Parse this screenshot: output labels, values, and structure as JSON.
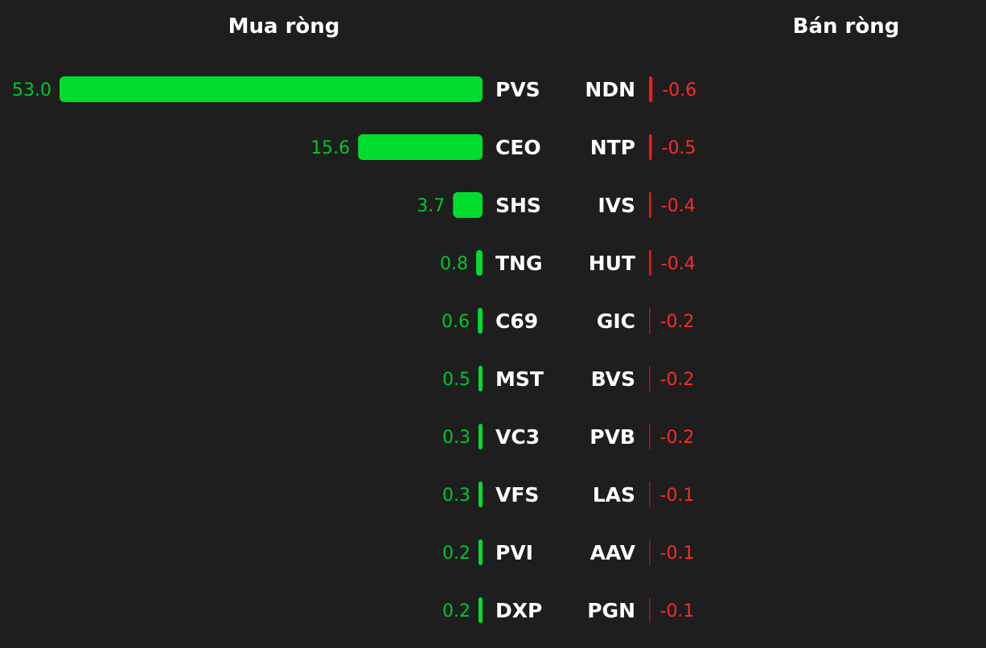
{
  "chart_data": [
    {
      "type": "bar",
      "title": "Mua ròng",
      "orientation": "horizontal",
      "color": "#00dd2c",
      "categories": [
        "PVS",
        "CEO",
        "SHS",
        "TNG",
        "C69",
        "MST",
        "VC3",
        "VFS",
        "PVI",
        "DXP"
      ],
      "values": [
        53.0,
        15.6,
        3.7,
        0.8,
        0.6,
        0.5,
        0.3,
        0.3,
        0.2,
        0.2
      ],
      "labels": [
        "53.0",
        "15.6",
        "3.7",
        "0.8",
        "0.6",
        "0.5",
        "0.3",
        "0.3",
        "0.2",
        "0.2"
      ]
    },
    {
      "type": "bar",
      "title": "Bán ròng",
      "orientation": "horizontal",
      "color": "#ff1a1a",
      "categories": [
        "NDN",
        "NTP",
        "IVS",
        "HUT",
        "GIC",
        "BVS",
        "PVB",
        "LAS",
        "AAV",
        "PGN"
      ],
      "values": [
        -0.6,
        -0.5,
        -0.4,
        -0.4,
        -0.2,
        -0.2,
        -0.2,
        -0.1,
        -0.1,
        -0.1
      ],
      "labels": [
        "-0.6",
        "-0.5",
        "-0.4",
        "-0.4",
        "-0.2",
        "-0.2",
        "-0.2",
        "-0.1",
        "-0.1",
        "-0.1"
      ]
    }
  ]
}
